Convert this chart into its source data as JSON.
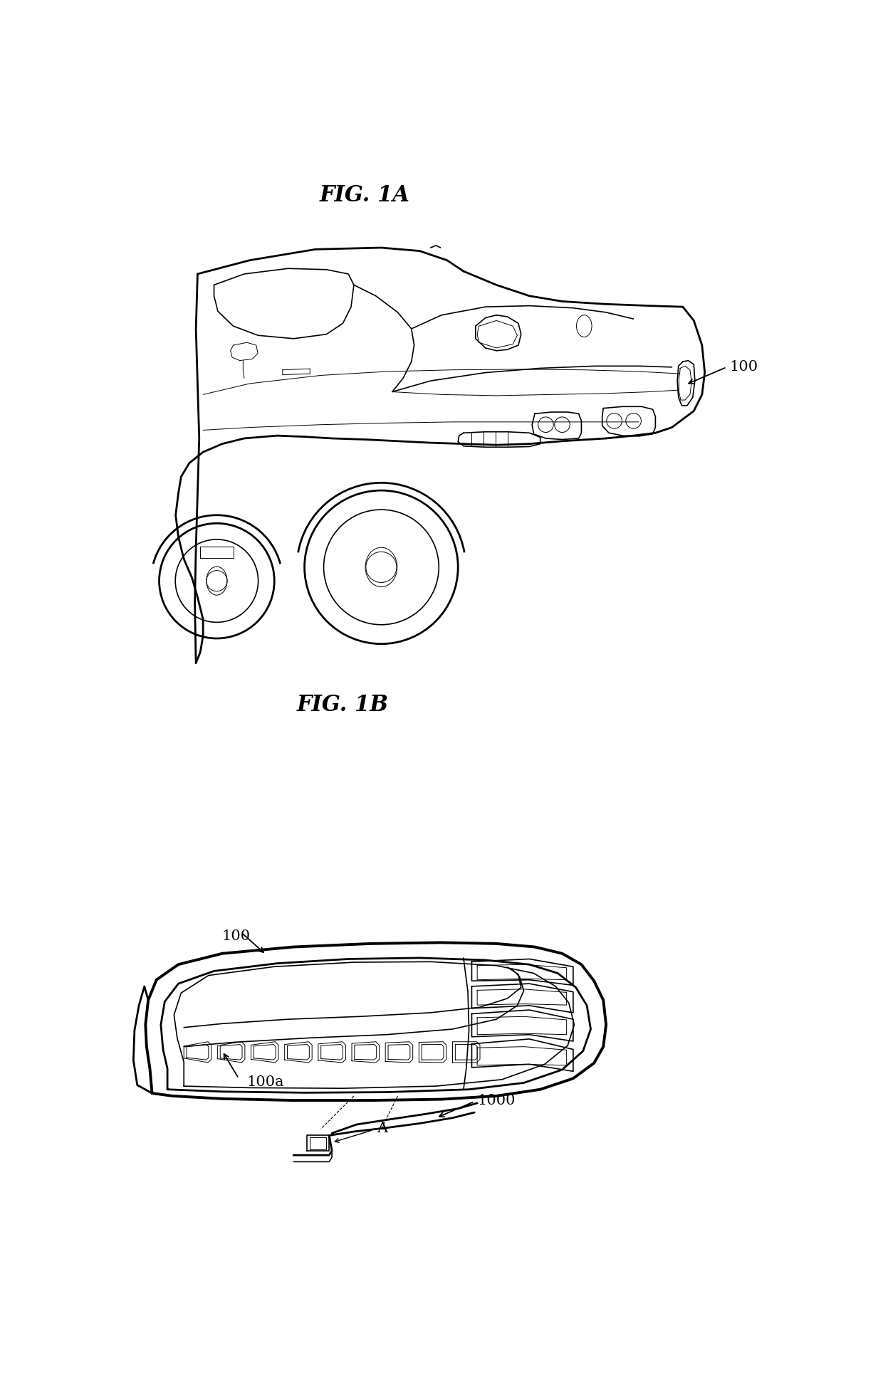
{
  "fig_title_1": "FIG. 1A",
  "fig_title_2": "FIG. 1B",
  "label_100_fig1": "100",
  "label_100_fig2": "100",
  "label_100a": "100a",
  "label_A": "A",
  "label_1000": "1000",
  "bg_color": "#ffffff",
  "line_color": "#000000",
  "title_fontsize": 22,
  "label_fontsize": 15,
  "fig_width": 12.4,
  "fig_height": 19.33
}
